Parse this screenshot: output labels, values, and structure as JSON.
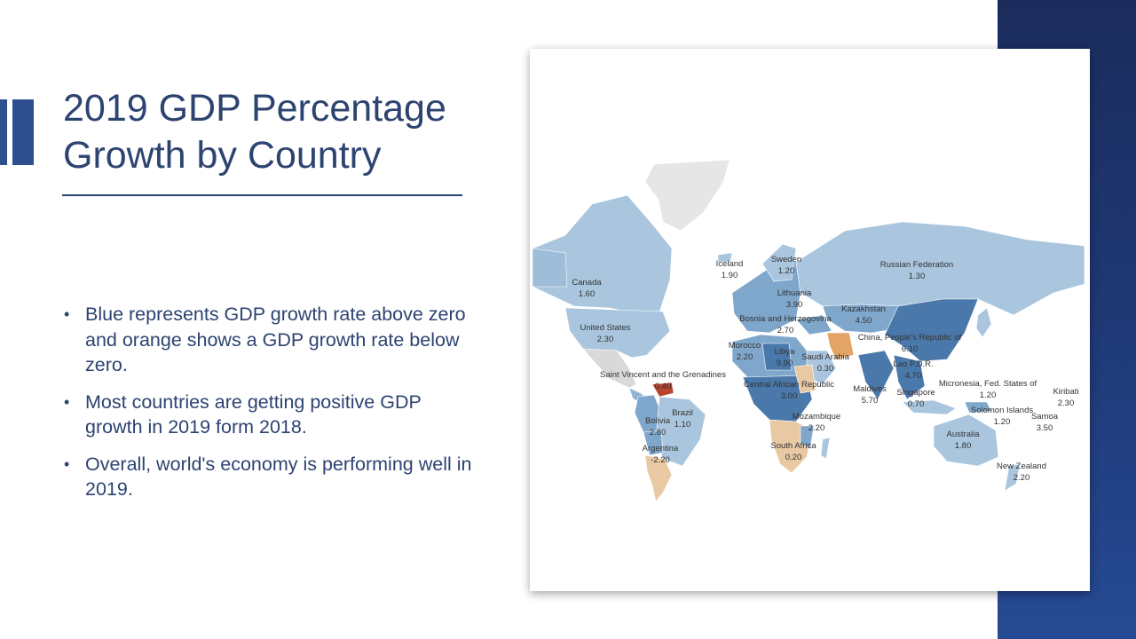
{
  "slide": {
    "title_line1": "2019 GDP Percentage",
    "title_line2": "Growth by Country",
    "bullets": [
      "Blue represents GDP growth rate above zero and orange shows a GDP growth rate below zero.",
      "Most countries are getting positive GDP growth in 2019 form 2018.",
      "Overall, world's economy is performing well in 2019."
    ],
    "bullet_glyph": "•"
  },
  "colors": {
    "title": "#2d4370",
    "panel": "#1f3a78",
    "positive_light": "#a9c6de",
    "positive_mid": "#7fa7cc",
    "positive_dark": "#4a78ab",
    "negative_light": "#e8c9a3",
    "negative_mid": "#e3a466",
    "negative_dark": "#b8442e",
    "no_data": "#e6e6e6"
  },
  "map": {
    "labels": [
      {
        "name": "Canada",
        "value": "1.60"
      },
      {
        "name": "United States",
        "value": "2.30"
      },
      {
        "name": "Iceland",
        "value": "1.90"
      },
      {
        "name": "Sweden",
        "value": "1.20"
      },
      {
        "name": "Russian Federation",
        "value": "1.30"
      },
      {
        "name": "Lithuania",
        "value": "3.90"
      },
      {
        "name": "Bosnia and Herzegovina",
        "value": "2.70"
      },
      {
        "name": "Kazakhstan",
        "value": "4.50"
      },
      {
        "name": "China, People's Republic of",
        "value": "6.10"
      },
      {
        "name": "Morocco",
        "value": "2.20"
      },
      {
        "name": "Libya",
        "value": "9.90"
      },
      {
        "name": "Saudi Arabia",
        "value": "0.30"
      },
      {
        "name": "Lao P.D.R.",
        "value": "4.70"
      },
      {
        "name": "Saint Vincent and the Grenadines",
        "value": "0.40"
      },
      {
        "name": "Central African Republic",
        "value": "3.00"
      },
      {
        "name": "Maldives",
        "value": "5.70"
      },
      {
        "name": "Singapore",
        "value": "0.70"
      },
      {
        "name": "Micronesia, Fed. States of",
        "value": "1.20"
      },
      {
        "name": "Kiribati",
        "value": "2.30"
      },
      {
        "name": "Brazil",
        "value": "1.10"
      },
      {
        "name": "Bolivia",
        "value": "2.80"
      },
      {
        "name": "Mozambique",
        "value": "2.20"
      },
      {
        "name": "Solomon Islands",
        "value": "1.20"
      },
      {
        "name": "Samoa",
        "value": "3.50"
      },
      {
        "name": "Australia",
        "value": "1.80"
      },
      {
        "name": "Argentina",
        "value": "-2.20"
      },
      {
        "name": "South Africa",
        "value": "0.20"
      },
      {
        "name": "New Zealand",
        "value": "2.20"
      }
    ]
  }
}
